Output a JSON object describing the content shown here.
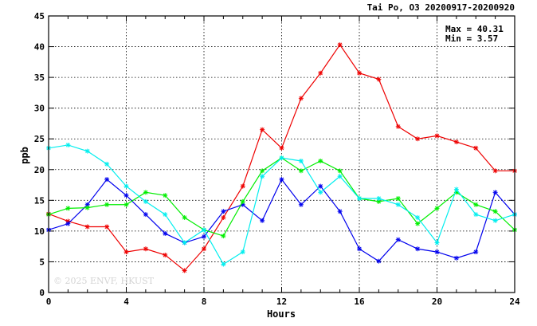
{
  "chart_data": {
    "type": "line",
    "title": "Tai Po, O3 20200917-20200920",
    "xlabel": "Hours",
    "ylabel": "ppb",
    "xlim": [
      0,
      24
    ],
    "ylim": [
      0,
      45
    ],
    "x_ticks": [
      0,
      4,
      8,
      12,
      16,
      20,
      24
    ],
    "y_ticks": [
      0,
      5,
      10,
      15,
      20,
      25,
      30,
      35,
      40,
      45
    ],
    "grid": true,
    "max_label": "Max = 40.31",
    "min_label": "Min =  3.57",
    "watermark": "© 2025  ENVF, HKUST",
    "x": [
      0,
      1,
      2,
      3,
      4,
      5,
      6,
      7,
      8,
      9,
      10,
      11,
      12,
      13,
      14,
      15,
      16,
      17,
      18,
      19,
      20,
      21,
      22,
      23,
      24
    ],
    "series": [
      {
        "color": "#ee0000",
        "values": [
          12.8,
          11.6,
          10.7,
          10.7,
          6.6,
          7.1,
          6.1,
          3.57,
          7.1,
          12.2,
          17.3,
          26.5,
          23.5,
          31.6,
          35.7,
          40.31,
          35.7,
          34.7,
          27.0,
          25.0,
          25.5,
          24.5,
          23.5,
          19.8,
          19.8
        ]
      },
      {
        "color": "#0000ee",
        "values": [
          10.2,
          11.2,
          14.3,
          18.4,
          15.8,
          12.7,
          9.6,
          8.1,
          9.1,
          13.2,
          14.3,
          11.7,
          18.4,
          14.3,
          17.3,
          13.2,
          7.1,
          5.1,
          8.6,
          7.1,
          6.6,
          5.6,
          6.6,
          16.3,
          12.7
        ]
      },
      {
        "color": "#00ee00",
        "values": [
          12.7,
          13.7,
          13.8,
          14.3,
          14.3,
          16.3,
          15.8,
          12.2,
          10.2,
          9.2,
          14.8,
          19.8,
          21.9,
          19.8,
          21.4,
          19.8,
          15.3,
          14.8,
          15.3,
          11.2,
          13.7,
          16.3,
          14.3,
          13.2,
          10.2
        ]
      },
      {
        "color": "#00eeee",
        "values": [
          23.5,
          24.0,
          23.0,
          20.9,
          17.3,
          14.8,
          12.7,
          8.1,
          10.2,
          4.6,
          6.6,
          18.9,
          21.9,
          21.4,
          16.3,
          18.9,
          15.3,
          15.3,
          14.3,
          12.2,
          8.1,
          16.8,
          12.7,
          11.7,
          12.7
        ]
      }
    ]
  }
}
